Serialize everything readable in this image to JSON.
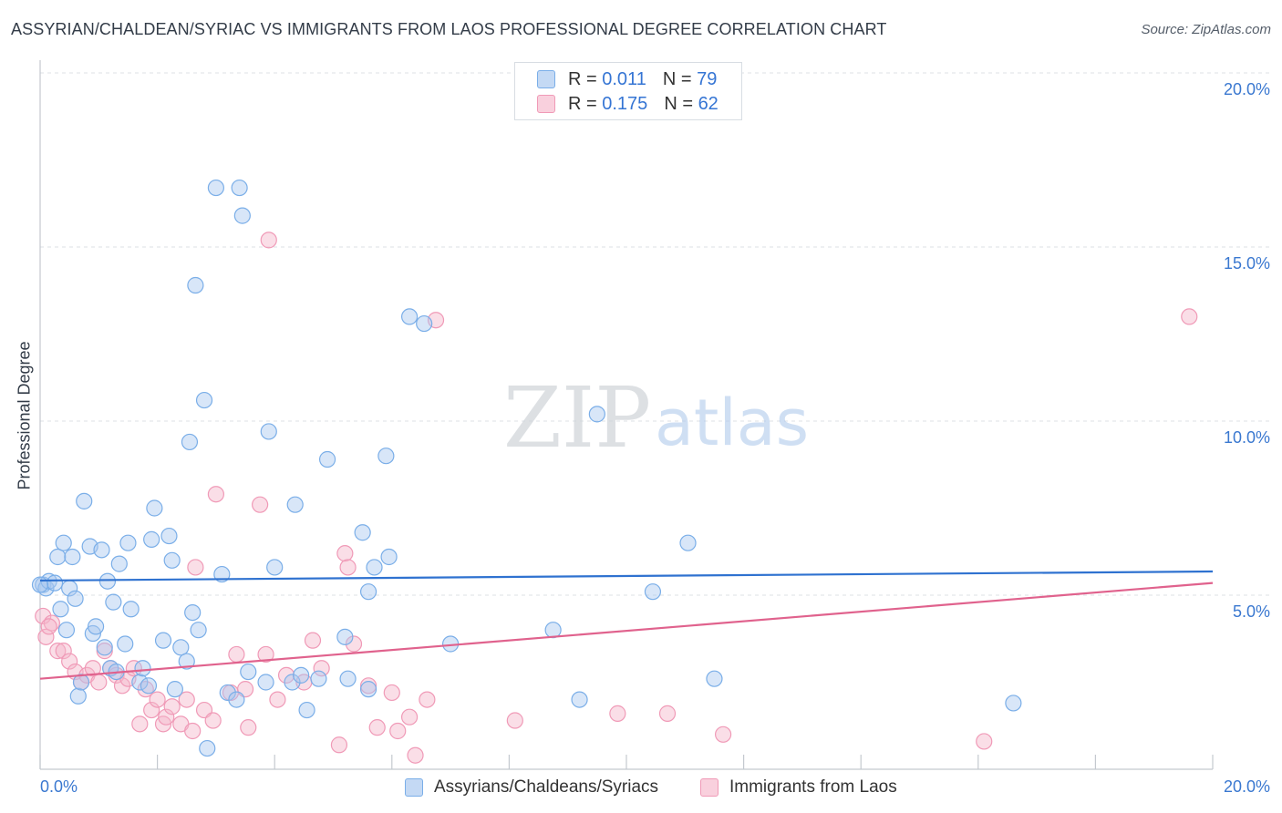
{
  "title": "ASSYRIAN/CHALDEAN/SYRIAC VS IMMIGRANTS FROM LAOS PROFESSIONAL DEGREE CORRELATION CHART",
  "source": "Source: ZipAtlas.com",
  "watermark": {
    "zip": "ZIP",
    "atlas": "atlas"
  },
  "legend": {
    "rows": [
      {
        "r_label": "R =",
        "r_value": "0.011",
        "n_label": "N =",
        "n_value": "79",
        "color": "#a9c8f0"
      },
      {
        "r_label": "R =",
        "r_value": "0.175",
        "n_label": "N =",
        "n_value": "62",
        "color": "#f5b6ca"
      }
    ]
  },
  "bottom_legend": {
    "series1": "Assyrians/Chaldeans/Syriacs",
    "series2": "Immigrants from Laos"
  },
  "chart_data": {
    "type": "scatter",
    "title": "ASSYRIAN/CHALDEAN/SYRIAC VS IMMIGRANTS FROM LAOS PROFESSIONAL DEGREE CORRELATION CHART",
    "xlabel": "",
    "ylabel": "Professional Degree",
    "xlim": [
      0,
      20
    ],
    "ylim": [
      0,
      20
    ],
    "x_tick_labels": [
      "0.0%",
      "20.0%"
    ],
    "y_ticks": [
      5,
      10,
      15,
      20
    ],
    "y_tick_labels": [
      "5.0%",
      "10.0%",
      "15.0%",
      "20.0%"
    ],
    "grid": true,
    "legend_position": "top-center",
    "series": [
      {
        "name": "Assyrians/Chaldeans/Syriacs",
        "color": "#7aaee8",
        "line_color": "#2f72d0",
        "trend": {
          "x": [
            0,
            20
          ],
          "y": [
            5.42,
            5.68
          ]
        },
        "points": [
          [
            0.05,
            5.3
          ],
          [
            0.1,
            5.2
          ],
          [
            0.15,
            5.4
          ],
          [
            0.25,
            5.35
          ],
          [
            0.3,
            6.1
          ],
          [
            0.35,
            4.6
          ],
          [
            0.4,
            6.5
          ],
          [
            0.45,
            4.0
          ],
          [
            0.5,
            5.2
          ],
          [
            0.55,
            6.1
          ],
          [
            0.6,
            4.9
          ],
          [
            0.65,
            2.1
          ],
          [
            0.7,
            2.5
          ],
          [
            0.75,
            7.7
          ],
          [
            0.85,
            6.4
          ],
          [
            0.9,
            3.9
          ],
          [
            0.95,
            4.1
          ],
          [
            1.05,
            6.3
          ],
          [
            1.1,
            3.5
          ],
          [
            1.15,
            5.4
          ],
          [
            1.2,
            2.9
          ],
          [
            1.25,
            4.8
          ],
          [
            1.3,
            2.8
          ],
          [
            1.35,
            5.9
          ],
          [
            1.45,
            3.6
          ],
          [
            1.5,
            6.5
          ],
          [
            1.55,
            4.6
          ],
          [
            1.7,
            2.5
          ],
          [
            1.75,
            2.9
          ],
          [
            1.85,
            2.4
          ],
          [
            1.9,
            6.6
          ],
          [
            1.95,
            7.5
          ],
          [
            2.1,
            3.7
          ],
          [
            2.2,
            6.7
          ],
          [
            2.25,
            6.0
          ],
          [
            2.3,
            2.3
          ],
          [
            2.4,
            3.5
          ],
          [
            2.5,
            3.1
          ],
          [
            2.55,
            9.4
          ],
          [
            2.6,
            4.5
          ],
          [
            2.65,
            13.9
          ],
          [
            2.7,
            4.0
          ],
          [
            2.8,
            10.6
          ],
          [
            2.85,
            0.6
          ],
          [
            3.0,
            16.7
          ],
          [
            3.1,
            5.6
          ],
          [
            3.2,
            2.2
          ],
          [
            3.35,
            2.0
          ],
          [
            3.4,
            16.7
          ],
          [
            3.45,
            15.9
          ],
          [
            3.55,
            2.8
          ],
          [
            3.85,
            2.5
          ],
          [
            3.9,
            9.7
          ],
          [
            4.0,
            5.8
          ],
          [
            4.3,
            2.5
          ],
          [
            4.35,
            7.6
          ],
          [
            4.45,
            2.7
          ],
          [
            4.55,
            1.7
          ],
          [
            4.75,
            2.6
          ],
          [
            4.9,
            8.9
          ],
          [
            5.2,
            3.8
          ],
          [
            5.25,
            2.6
          ],
          [
            5.5,
            6.8
          ],
          [
            5.6,
            2.3
          ],
          [
            5.6,
            5.1
          ],
          [
            5.7,
            5.8
          ],
          [
            5.9,
            9.0
          ],
          [
            5.95,
            6.1
          ],
          [
            6.3,
            13.0
          ],
          [
            6.55,
            12.8
          ],
          [
            7.0,
            3.6
          ],
          [
            8.75,
            4.0
          ],
          [
            9.2,
            2.0
          ],
          [
            9.5,
            10.2
          ],
          [
            10.45,
            5.1
          ],
          [
            11.05,
            6.5
          ],
          [
            11.5,
            2.6
          ],
          [
            16.6,
            1.9
          ],
          [
            0.0,
            5.3
          ]
        ]
      },
      {
        "name": "Immigrants from Laos",
        "color": "#f09ab7",
        "line_color": "#e0628d",
        "trend": {
          "x": [
            0,
            20
          ],
          "y": [
            2.6,
            5.35
          ]
        },
        "points": [
          [
            0.05,
            4.4
          ],
          [
            0.1,
            3.8
          ],
          [
            0.2,
            4.2
          ],
          [
            0.3,
            3.4
          ],
          [
            0.4,
            3.4
          ],
          [
            0.5,
            3.1
          ],
          [
            0.6,
            2.8
          ],
          [
            0.7,
            2.5
          ],
          [
            0.8,
            2.7
          ],
          [
            0.9,
            2.9
          ],
          [
            1.0,
            2.5
          ],
          [
            1.1,
            3.4
          ],
          [
            1.2,
            2.9
          ],
          [
            1.3,
            2.7
          ],
          [
            1.4,
            2.4
          ],
          [
            1.5,
            2.6
          ],
          [
            1.6,
            2.9
          ],
          [
            1.7,
            1.3
          ],
          [
            1.8,
            2.3
          ],
          [
            1.9,
            1.7
          ],
          [
            2.0,
            2.0
          ],
          [
            2.1,
            1.3
          ],
          [
            2.15,
            1.5
          ],
          [
            2.25,
            1.8
          ],
          [
            2.4,
            1.3
          ],
          [
            2.5,
            2.0
          ],
          [
            2.6,
            1.1
          ],
          [
            2.65,
            5.8
          ],
          [
            2.8,
            1.7
          ],
          [
            2.95,
            1.4
          ],
          [
            3.0,
            7.9
          ],
          [
            3.25,
            2.2
          ],
          [
            3.35,
            3.3
          ],
          [
            3.5,
            2.3
          ],
          [
            3.55,
            1.2
          ],
          [
            3.75,
            7.6
          ],
          [
            3.85,
            3.3
          ],
          [
            3.9,
            15.2
          ],
          [
            4.05,
            2.0
          ],
          [
            4.2,
            2.7
          ],
          [
            4.5,
            2.5
          ],
          [
            4.65,
            3.7
          ],
          [
            4.8,
            2.9
          ],
          [
            5.1,
            0.7
          ],
          [
            5.2,
            6.2
          ],
          [
            5.25,
            5.8
          ],
          [
            5.35,
            3.6
          ],
          [
            5.6,
            2.4
          ],
          [
            5.75,
            1.2
          ],
          [
            6.0,
            2.2
          ],
          [
            6.1,
            1.1
          ],
          [
            6.3,
            1.5
          ],
          [
            6.4,
            0.4
          ],
          [
            6.6,
            2.0
          ],
          [
            6.75,
            12.9
          ],
          [
            8.1,
            1.4
          ],
          [
            9.85,
            1.6
          ],
          [
            10.7,
            1.6
          ],
          [
            11.65,
            1.0
          ],
          [
            16.1,
            0.8
          ],
          [
            19.6,
            13.0
          ],
          [
            0.15,
            4.1
          ]
        ]
      }
    ]
  }
}
